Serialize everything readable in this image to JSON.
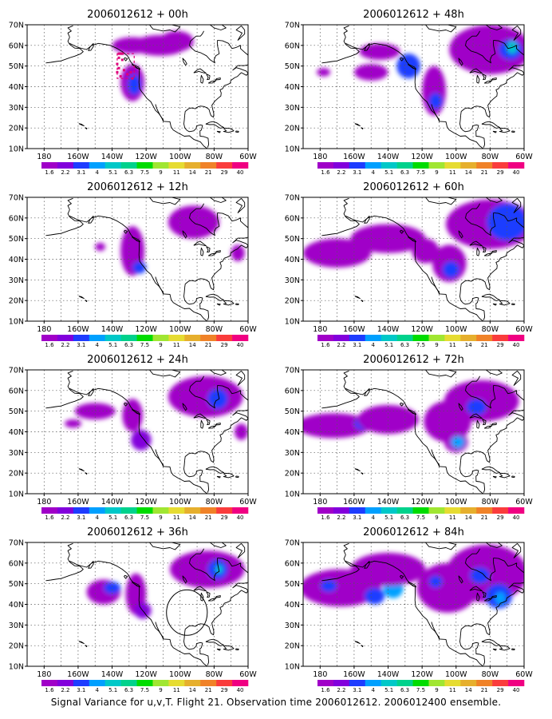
{
  "caption": "Signal Variance for u,v,T. Flight 21. Observation time 2006012612. 2006012400 ensemble.",
  "chart_data": {
    "type": "contour-map-panels",
    "colorbar": {
      "levels": [
        "1.6",
        "2.2",
        "3.1",
        "4",
        "5.1",
        "6.3",
        "7.5",
        "9",
        "11",
        "14",
        "21",
        "29",
        "40"
      ],
      "colors": [
        "#a000c8",
        "#8200dc",
        "#1e3cff",
        "#00a0ff",
        "#00c8c8",
        "#00d28c",
        "#00dc00",
        "#a0e632",
        "#e6dc32",
        "#e6af2d",
        "#f08228",
        "#fa3c3c",
        "#f00082"
      ]
    },
    "lon_ticks": [
      "180",
      "160W",
      "140W",
      "120W",
      "100W",
      "80W",
      "60W"
    ],
    "lat_ticks": [
      "10N",
      "20N",
      "30N",
      "40N",
      "50N",
      "60N",
      "70N"
    ],
    "lon_range": [
      -190,
      -60
    ],
    "lat_range": [
      10,
      70
    ],
    "panels": [
      {
        "title": "2006012612 + 00h",
        "column": 0,
        "row": 0,
        "features": [
          {
            "lon": -128,
            "lat": 42,
            "rlon": 7,
            "rlat": 9,
            "level": 0
          },
          {
            "lon": -127,
            "lat": 41,
            "rlon": 4,
            "rlat": 5,
            "level": 2
          },
          {
            "lon": -128,
            "lat": 60,
            "rlon": 12,
            "rlat": 4,
            "level": 0
          },
          {
            "lon": -112,
            "lat": 60,
            "rlon": 16,
            "rlat": 5,
            "level": 0
          },
          {
            "lon": -102,
            "lat": 62,
            "rlon": 10,
            "rlat": 5,
            "level": 0
          }
        ],
        "observation_box": {
          "lon": -132,
          "lat": 50,
          "rlon": 5,
          "rlat": 6
        },
        "observation_points": [
          [
            -136,
            56
          ],
          [
            -135,
            56
          ],
          [
            -134,
            56
          ],
          [
            -136,
            54
          ],
          [
            -134,
            53
          ],
          [
            -137,
            51
          ],
          [
            -136,
            49
          ],
          [
            -133,
            48
          ],
          [
            -137,
            47
          ],
          [
            -135,
            45
          ],
          [
            -131,
            46
          ],
          [
            -129,
            47
          ],
          [
            -128,
            44
          ]
        ]
      },
      {
        "title": "2006012612 + 12h",
        "column": 0,
        "row": 1,
        "features": [
          {
            "lon": -147,
            "lat": 46,
            "rlon": 3,
            "rlat": 2,
            "level": 0
          },
          {
            "lon": -128,
            "lat": 44,
            "rlon": 7,
            "rlat": 12,
            "level": 0
          },
          {
            "lon": -124,
            "lat": 36,
            "rlon": 4,
            "rlat": 3,
            "level": 2
          },
          {
            "lon": -92,
            "lat": 58,
            "rlon": 15,
            "rlat": 8,
            "level": 0
          },
          {
            "lon": -66,
            "lat": 43,
            "rlon": 4,
            "rlat": 4,
            "level": 0
          }
        ]
      },
      {
        "title": "2006012612 + 24h",
        "column": 0,
        "row": 2,
        "features": [
          {
            "lon": -163,
            "lat": 44,
            "rlon": 5,
            "rlat": 2,
            "level": 0
          },
          {
            "lon": -150,
            "lat": 50,
            "rlon": 12,
            "rlat": 4,
            "level": 0
          },
          {
            "lon": -128,
            "lat": 48,
            "rlon": 6,
            "rlat": 8,
            "level": 0
          },
          {
            "lon": -123,
            "lat": 36,
            "rlon": 6,
            "rlat": 5,
            "level": 1
          },
          {
            "lon": -85,
            "lat": 57,
            "rlon": 22,
            "rlat": 10,
            "level": 0
          },
          {
            "lon": -78,
            "lat": 56,
            "rlon": 6,
            "rlat": 5,
            "level": 2
          },
          {
            "lon": -64,
            "lat": 40,
            "rlon": 4,
            "rlat": 4,
            "level": 0
          }
        ]
      },
      {
        "title": "2006012612 + 36h",
        "column": 0,
        "row": 3,
        "features": [
          {
            "lon": -145,
            "lat": 46,
            "rlon": 10,
            "rlat": 6,
            "level": 0
          },
          {
            "lon": -140,
            "lat": 48,
            "rlon": 5,
            "rlat": 3,
            "level": 2
          },
          {
            "lon": -126,
            "lat": 45,
            "rlon": 6,
            "rlat": 10,
            "level": 0
          },
          {
            "lon": -122,
            "lat": 37,
            "rlon": 5,
            "rlat": 4,
            "level": 1
          },
          {
            "lon": -84,
            "lat": 57,
            "rlon": 22,
            "rlat": 9,
            "level": 0
          },
          {
            "lon": -78,
            "lat": 57,
            "rlon": 6,
            "rlat": 5,
            "level": 2
          },
          {
            "lon": -77,
            "lat": 57,
            "rlon": 2,
            "rlat": 2,
            "level": 4
          }
        ],
        "ring": {
          "lon": -96,
          "lat": 36,
          "rlon": 12,
          "rlat": 11
        }
      },
      {
        "title": "2006012612 + 48h",
        "column": 1,
        "row": 0,
        "features": [
          {
            "lon": -178,
            "lat": 47,
            "rlon": 4,
            "rlat": 2,
            "level": 0
          },
          {
            "lon": -145,
            "lat": 57,
            "rlon": 12,
            "rlat": 4,
            "level": 0
          },
          {
            "lon": -150,
            "lat": 47,
            "rlon": 10,
            "rlat": 4,
            "level": 0
          },
          {
            "lon": -128,
            "lat": 50,
            "rlon": 7,
            "rlat": 6,
            "level": 2
          },
          {
            "lon": -113,
            "lat": 38,
            "rlon": 7,
            "rlat": 12,
            "level": 0
          },
          {
            "lon": -112,
            "lat": 33,
            "rlon": 4,
            "rlat": 4,
            "level": 2
          },
          {
            "lon": -80,
            "lat": 58,
            "rlon": 24,
            "rlat": 12,
            "level": 0
          },
          {
            "lon": -68,
            "lat": 58,
            "rlon": 7,
            "rlat": 5,
            "level": 2
          },
          {
            "lon": -67,
            "lat": 59,
            "rlon": 3,
            "rlat": 3,
            "level": 4
          }
        ]
      },
      {
        "title": "2006012612 + 60h",
        "column": 1,
        "row": 1,
        "features": [
          {
            "lon": -170,
            "lat": 43,
            "rlon": 20,
            "rlat": 7,
            "level": 0
          },
          {
            "lon": -140,
            "lat": 50,
            "rlon": 22,
            "rlat": 7,
            "level": 0
          },
          {
            "lon": -118,
            "lat": 44,
            "rlon": 8,
            "rlat": 6,
            "level": 0
          },
          {
            "lon": -104,
            "lat": 38,
            "rlon": 10,
            "rlat": 9,
            "level": 0
          },
          {
            "lon": -103,
            "lat": 35,
            "rlon": 5,
            "rlat": 4,
            "level": 2
          },
          {
            "lon": -80,
            "lat": 57,
            "rlon": 26,
            "rlat": 12,
            "level": 0
          },
          {
            "lon": -70,
            "lat": 58,
            "rlon": 12,
            "rlat": 9,
            "level": 2
          }
        ]
      },
      {
        "title": "2006012612 + 72h",
        "column": 1,
        "row": 2,
        "features": [
          {
            "lon": -172,
            "lat": 43,
            "rlon": 22,
            "rlat": 6,
            "level": 0
          },
          {
            "lon": -155,
            "lat": 44,
            "rlon": 5,
            "rlat": 3,
            "level": 2
          },
          {
            "lon": -140,
            "lat": 46,
            "rlon": 18,
            "rlat": 7,
            "level": 0
          },
          {
            "lon": -105,
            "lat": 45,
            "rlon": 14,
            "rlat": 10,
            "level": 0
          },
          {
            "lon": -100,
            "lat": 35,
            "rlon": 7,
            "rlat": 5,
            "level": 0
          },
          {
            "lon": -99,
            "lat": 35,
            "rlon": 4,
            "rlat": 3,
            "level": 3
          },
          {
            "lon": -85,
            "lat": 55,
            "rlon": 22,
            "rlat": 10,
            "level": 0
          },
          {
            "lon": -88,
            "lat": 52,
            "rlon": 6,
            "rlat": 4,
            "level": 2
          }
        ]
      },
      {
        "title": "2006012612 + 84h",
        "column": 1,
        "row": 3,
        "features": [
          {
            "lon": -168,
            "lat": 48,
            "rlon": 24,
            "rlat": 9,
            "level": 0
          },
          {
            "lon": -175,
            "lat": 49,
            "rlon": 5,
            "rlat": 3,
            "level": 2
          },
          {
            "lon": -148,
            "lat": 44,
            "rlon": 6,
            "rlat": 4,
            "level": 2
          },
          {
            "lon": -137,
            "lat": 48,
            "rlon": 6,
            "rlat": 5,
            "level": 3
          },
          {
            "lon": -140,
            "lat": 57,
            "rlon": 22,
            "rlat": 8,
            "level": 0
          },
          {
            "lon": -105,
            "lat": 48,
            "rlon": 18,
            "rlat": 12,
            "level": 0
          },
          {
            "lon": -112,
            "lat": 51,
            "rlon": 4,
            "rlat": 3,
            "level": 2
          },
          {
            "lon": -82,
            "lat": 55,
            "rlon": 24,
            "rlat": 14,
            "level": 0
          },
          {
            "lon": -86,
            "lat": 54,
            "rlon": 6,
            "rlat": 4,
            "level": 2
          },
          {
            "lon": -75,
            "lat": 44,
            "rlon": 8,
            "rlat": 6,
            "level": 2
          },
          {
            "lon": -74,
            "lat": 43,
            "rlon": 3,
            "rlat": 3,
            "level": 3
          }
        ]
      }
    ]
  }
}
